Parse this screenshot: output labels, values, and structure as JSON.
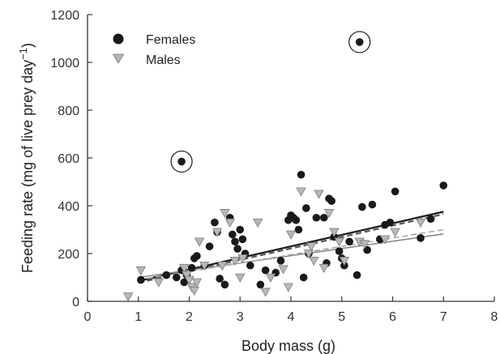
{
  "chart_data": {
    "type": "scatter",
    "title": "",
    "xlabel": "Body mass (g)",
    "ylabel_main": "Feeding rate (mg of live prey day",
    "ylabel_sup": "−1",
    "ylabel_close": ")",
    "xlim": [
      0,
      8
    ],
    "ylim": [
      0,
      1200
    ],
    "xticks": [
      "0",
      "1",
      "2",
      "3",
      "4",
      "5",
      "6",
      "7",
      "8"
    ],
    "yticks": [
      "0",
      "200",
      "400",
      "600",
      "800",
      "1000",
      "1200"
    ],
    "grid": false,
    "legend_position": "top-left",
    "series": [
      {
        "name": "Females",
        "marker": "circle",
        "color": "#1a1a1a",
        "points": [
          [
            1.05,
            90
          ],
          [
            1.55,
            110
          ],
          [
            1.75,
            100
          ],
          [
            1.85,
            130
          ],
          [
            1.9,
            80
          ],
          [
            1.95,
            110
          ],
          [
            2.05,
            140
          ],
          [
            2.1,
            180
          ],
          [
            2.15,
            190
          ],
          [
            2.3,
            150
          ],
          [
            2.4,
            230
          ],
          [
            2.5,
            330
          ],
          [
            2.55,
            290
          ],
          [
            2.6,
            95
          ],
          [
            2.7,
            70
          ],
          [
            2.8,
            350
          ],
          [
            2.85,
            280
          ],
          [
            2.9,
            250
          ],
          [
            2.95,
            220
          ],
          [
            3.0,
            300
          ],
          [
            3.05,
            260
          ],
          [
            3.1,
            200
          ],
          [
            3.2,
            150
          ],
          [
            3.4,
            70
          ],
          [
            3.5,
            130
          ],
          [
            3.7,
            120
          ],
          [
            3.8,
            170
          ],
          [
            3.95,
            340
          ],
          [
            4.0,
            360
          ],
          [
            4.05,
            350
          ],
          [
            4.1,
            340
          ],
          [
            4.15,
            300
          ],
          [
            4.2,
            530
          ],
          [
            4.25,
            100
          ],
          [
            4.3,
            390
          ],
          [
            4.35,
            200
          ],
          [
            4.5,
            350
          ],
          [
            4.65,
            350
          ],
          [
            4.7,
            160
          ],
          [
            4.75,
            430
          ],
          [
            4.8,
            420
          ],
          [
            4.85,
            270
          ],
          [
            4.95,
            210
          ],
          [
            5.0,
            180
          ],
          [
            5.05,
            150
          ],
          [
            5.15,
            250
          ],
          [
            5.3,
            110
          ],
          [
            5.4,
            395
          ],
          [
            5.5,
            215
          ],
          [
            5.6,
            405
          ],
          [
            5.75,
            260
          ],
          [
            5.85,
            320
          ],
          [
            5.95,
            330
          ],
          [
            6.05,
            460
          ],
          [
            6.55,
            265
          ],
          [
            6.75,
            345
          ],
          [
            7.0,
            485
          ],
          [
            1.85,
            585
          ],
          [
            5.35,
            1085
          ]
        ]
      },
      {
        "name": "Males",
        "marker": "triangle-down",
        "color": "#9a9a9a",
        "points": [
          [
            0.8,
            20
          ],
          [
            1.05,
            130
          ],
          [
            1.4,
            80
          ],
          [
            1.9,
            140
          ],
          [
            1.95,
            110
          ],
          [
            2.0,
            90
          ],
          [
            2.05,
            60
          ],
          [
            2.1,
            45
          ],
          [
            2.15,
            80
          ],
          [
            2.2,
            250
          ],
          [
            2.3,
            150
          ],
          [
            2.55,
            290
          ],
          [
            2.65,
            150
          ],
          [
            2.7,
            370
          ],
          [
            2.8,
            330
          ],
          [
            2.9,
            170
          ],
          [
            3.0,
            100
          ],
          [
            3.05,
            180
          ],
          [
            3.35,
            330
          ],
          [
            3.5,
            40
          ],
          [
            3.6,
            100
          ],
          [
            3.85,
            135
          ],
          [
            3.95,
            60
          ],
          [
            4.0,
            280
          ],
          [
            4.2,
            460
          ],
          [
            4.35,
            200
          ],
          [
            4.4,
            230
          ],
          [
            4.45,
            170
          ],
          [
            4.55,
            450
          ],
          [
            4.65,
            140
          ],
          [
            4.75,
            370
          ],
          [
            4.85,
            290
          ],
          [
            4.95,
            250
          ],
          [
            5.05,
            170
          ],
          [
            5.35,
            250
          ],
          [
            5.45,
            240
          ],
          [
            5.85,
            260
          ],
          [
            6.05,
            290
          ],
          [
            6.55,
            330
          ]
        ]
      }
    ],
    "fits": [
      {
        "name": "",
        "style": "solid",
        "color": "#1a1a1a",
        "width": 2.2,
        "x": [
          1.0,
          7.0
        ],
        "y": [
          85,
          375
        ]
      },
      {
        "name": "",
        "style": "dashed",
        "color": "#555555",
        "width": 2.2,
        "x": [
          1.0,
          7.0
        ],
        "y": [
          78,
          365
        ]
      },
      {
        "name": "",
        "style": "solid",
        "color": "#8a8a8a",
        "width": 1.6,
        "x": [
          1.0,
          7.0
        ],
        "y": [
          100,
          282
        ]
      },
      {
        "name": "",
        "style": "dashed",
        "color": "#a8a8a8",
        "width": 1.6,
        "x": [
          1.0,
          7.0
        ],
        "y": [
          90,
          300
        ]
      }
    ],
    "outliers_circled": [
      [
        1.85,
        585
      ],
      [
        5.35,
        1085
      ]
    ]
  }
}
